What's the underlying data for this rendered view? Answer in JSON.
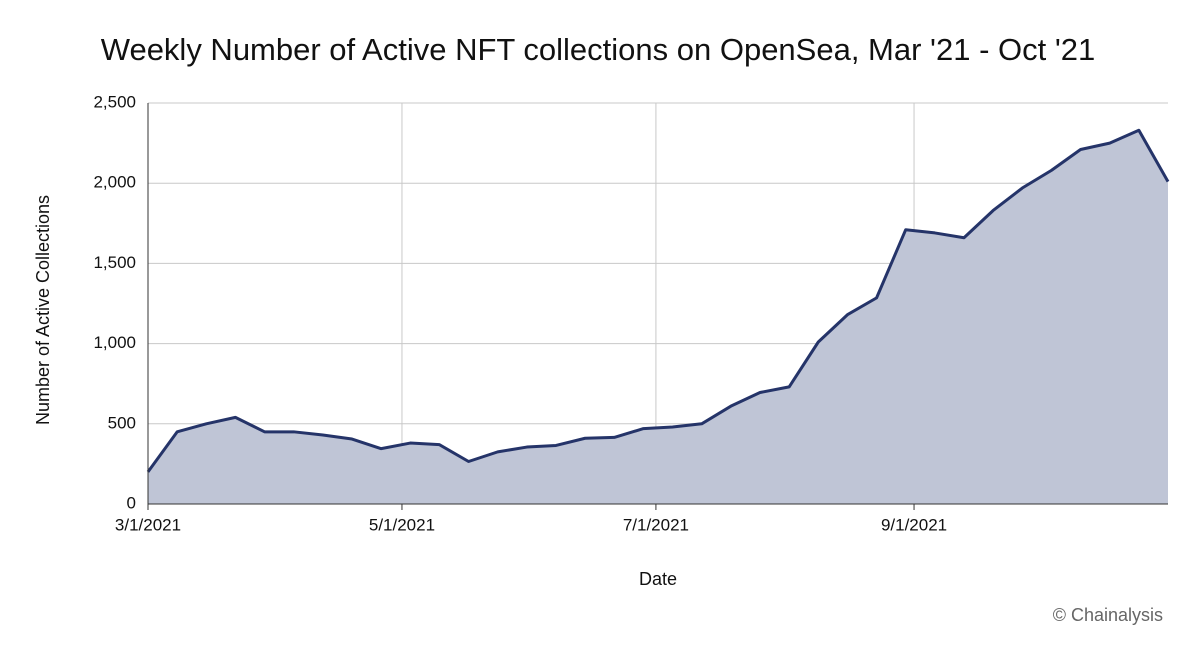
{
  "chart_data": {
    "type": "area",
    "title": "Weekly Number of Active NFT collections on OpenSea, Mar '21 - Oct '21",
    "x_label": "Date",
    "y_label": "Number of Active Collections",
    "credit": "© Chainalysis",
    "x": [
      "3/1/2021",
      "3/8/2021",
      "3/15/2021",
      "3/22/2021",
      "3/29/2021",
      "4/5/2021",
      "4/12/2021",
      "4/19/2021",
      "4/26/2021",
      "5/3/2021",
      "5/10/2021",
      "5/17/2021",
      "5/24/2021",
      "5/31/2021",
      "6/7/2021",
      "6/14/2021",
      "6/21/2021",
      "6/28/2021",
      "7/5/2021",
      "7/12/2021",
      "7/19/2021",
      "7/26/2021",
      "8/2/2021",
      "8/9/2021",
      "8/16/2021",
      "8/23/2021",
      "8/30/2021",
      "9/6/2021",
      "9/13/2021",
      "9/20/2021",
      "9/27/2021",
      "10/4/2021",
      "10/11/2021",
      "10/18/2021",
      "10/25/2021",
      "11/1/2021"
    ],
    "series": [
      {
        "name": "Active Collections",
        "color": "#253469",
        "fill": "#bfc5d6",
        "values": [
          200,
          450,
          500,
          540,
          450,
          450,
          430,
          405,
          345,
          380,
          370,
          265,
          325,
          355,
          365,
          410,
          415,
          470,
          480,
          500,
          610,
          695,
          730,
          1010,
          1180,
          1285,
          1710,
          1690,
          1660,
          1830,
          1970,
          2080,
          2210,
          2250,
          2330,
          2010
        ]
      }
    ],
    "xlim": [
      "3/1/2021",
      "11/1/2021"
    ],
    "xticks": [
      "3/1/2021",
      "5/1/2021",
      "7/1/2021",
      "9/1/2021"
    ],
    "ylim": [
      0,
      2500
    ],
    "yticks": [
      0,
      {
        "value": 500,
        "label": "500"
      },
      {
        "value": 1000,
        "label": "1,000"
      },
      {
        "value": 1500,
        "label": "1,500"
      },
      {
        "value": 2000,
        "label": "2,000"
      },
      {
        "value": 2500,
        "label": "2,500"
      }
    ],
    "grid": true
  }
}
